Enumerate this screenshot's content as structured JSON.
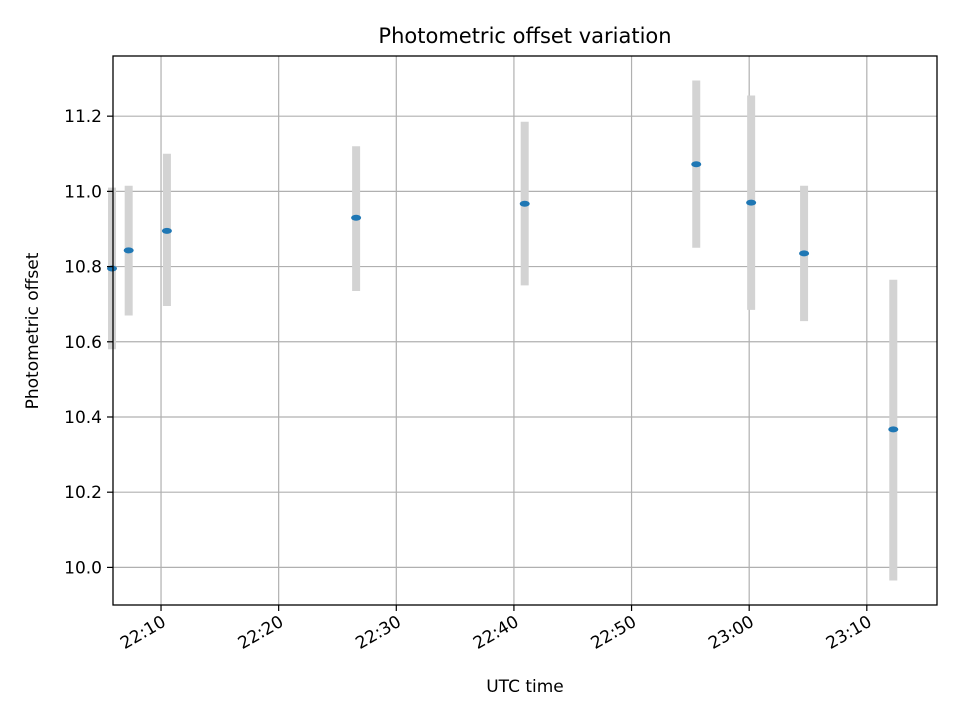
{
  "chart_data": {
    "type": "scatter",
    "title": "Photometric offset variation",
    "xlabel": "UTC time",
    "ylabel": "Photometric offset",
    "x_ticks": [
      "22:10",
      "22:20",
      "22:30",
      "22:40",
      "22:50",
      "23:00",
      "23:10"
    ],
    "y_ticks": [
      "10.0",
      "10.2",
      "10.4",
      "10.6",
      "10.8",
      "11.0",
      "11.2"
    ],
    "xlim": [
      "22:05:55",
      "23:15:58"
    ],
    "ylim": [
      9.9,
      11.36
    ],
    "grid": true,
    "colors": {
      "marker": "#1f77b4",
      "errorbar": "#d3d3d3",
      "grid": "#b0b0b0"
    },
    "points": [
      {
        "x": "22:05:50",
        "y": 10.795,
        "ylo": 10.58,
        "yhi": 11.01
      },
      {
        "x": "22:07:15",
        "y": 10.843,
        "ylo": 10.67,
        "yhi": 11.015
      },
      {
        "x": "22:10:30",
        "y": 10.895,
        "ylo": 10.695,
        "yhi": 11.1
      },
      {
        "x": "22:26:35",
        "y": 10.93,
        "ylo": 10.735,
        "yhi": 11.12
      },
      {
        "x": "22:40:55",
        "y": 10.967,
        "ylo": 10.75,
        "yhi": 11.185
      },
      {
        "x": "22:55:30",
        "y": 11.072,
        "ylo": 10.85,
        "yhi": 11.295
      },
      {
        "x": "23:00:10",
        "y": 10.97,
        "ylo": 10.685,
        "yhi": 11.255
      },
      {
        "x": "23:04:40",
        "y": 10.835,
        "ylo": 10.655,
        "yhi": 11.015
      },
      {
        "x": "23:12:15",
        "y": 10.367,
        "ylo": 9.965,
        "yhi": 10.765
      }
    ]
  }
}
